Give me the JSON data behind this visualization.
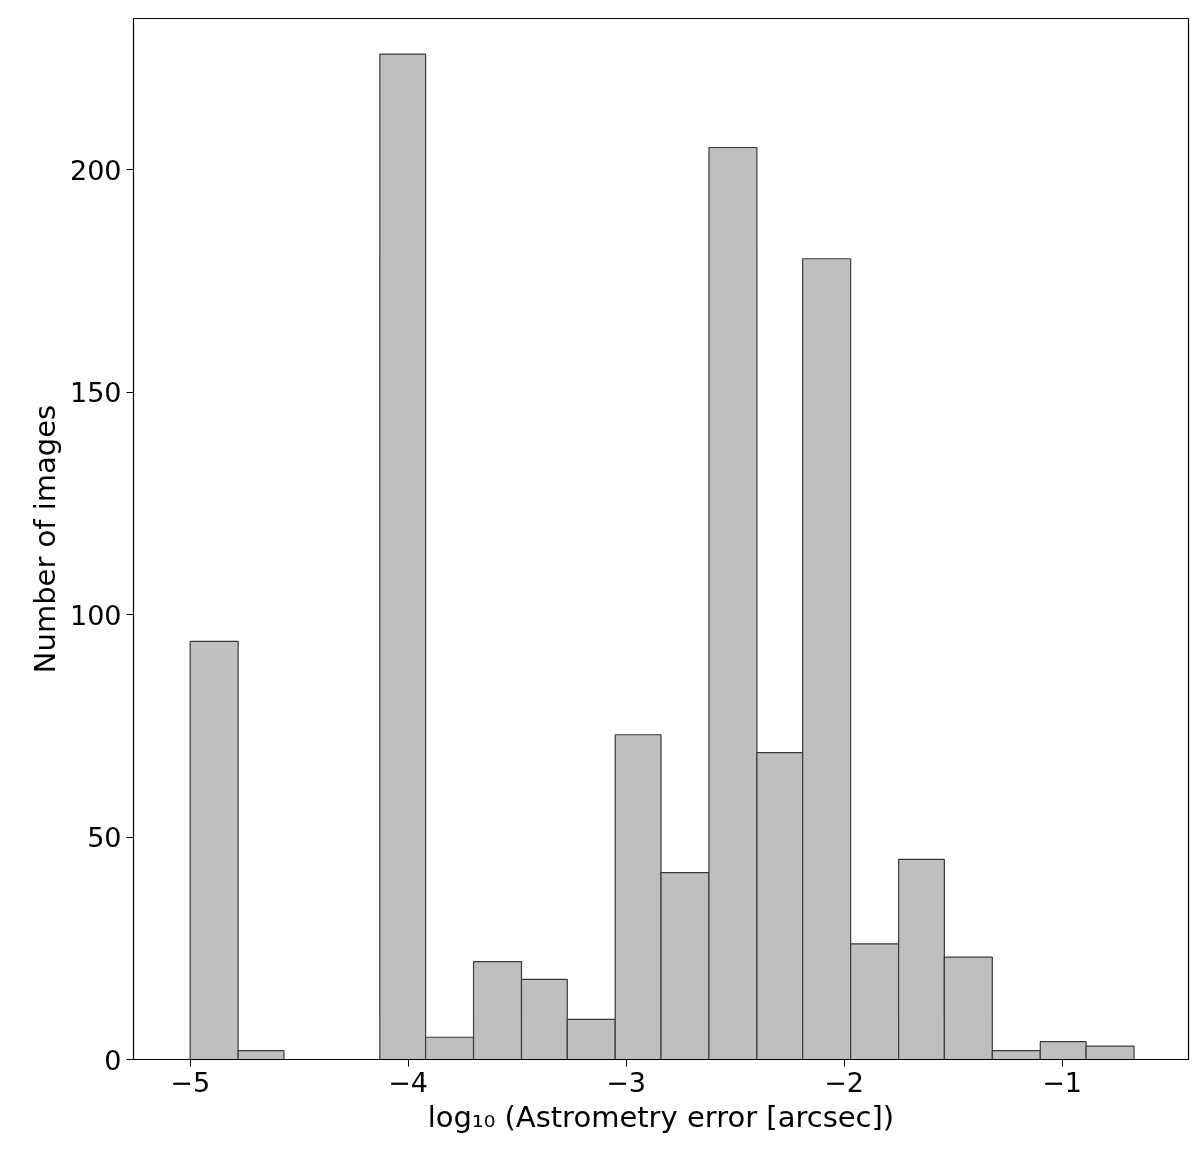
{
  "chart_data": {
    "type": "histogram",
    "xlabel": "log₁₀ (Astrometry error [arcsec])",
    "ylabel": "Number of images",
    "bins": [
      -5.0,
      -4.78,
      -4.57,
      -4.35,
      -4.13,
      -3.92,
      -3.7,
      -3.48,
      -3.27,
      -3.05,
      -2.84,
      -2.62,
      -2.4,
      -2.19,
      -1.97,
      -1.75,
      -1.54,
      -1.32,
      -1.1,
      -0.89,
      -0.67
    ],
    "values": [
      94,
      2,
      0,
      0,
      226,
      5,
      22,
      18,
      9,
      73,
      42,
      205,
      69,
      180,
      26,
      45,
      23,
      2,
      4,
      3
    ],
    "color": "#bfbfbf",
    "xlim": [
      -5.26,
      -0.42
    ],
    "ylim": [
      0,
      234
    ],
    "xticks": [
      {
        "value": -5,
        "label": "−5"
      },
      {
        "value": -4,
        "label": "−4"
      },
      {
        "value": -3,
        "label": "−3"
      },
      {
        "value": -2,
        "label": "−2"
      },
      {
        "value": -1,
        "label": "−1"
      }
    ],
    "yticks": [
      0,
      50,
      100,
      150,
      200
    ],
    "grid": false
  }
}
